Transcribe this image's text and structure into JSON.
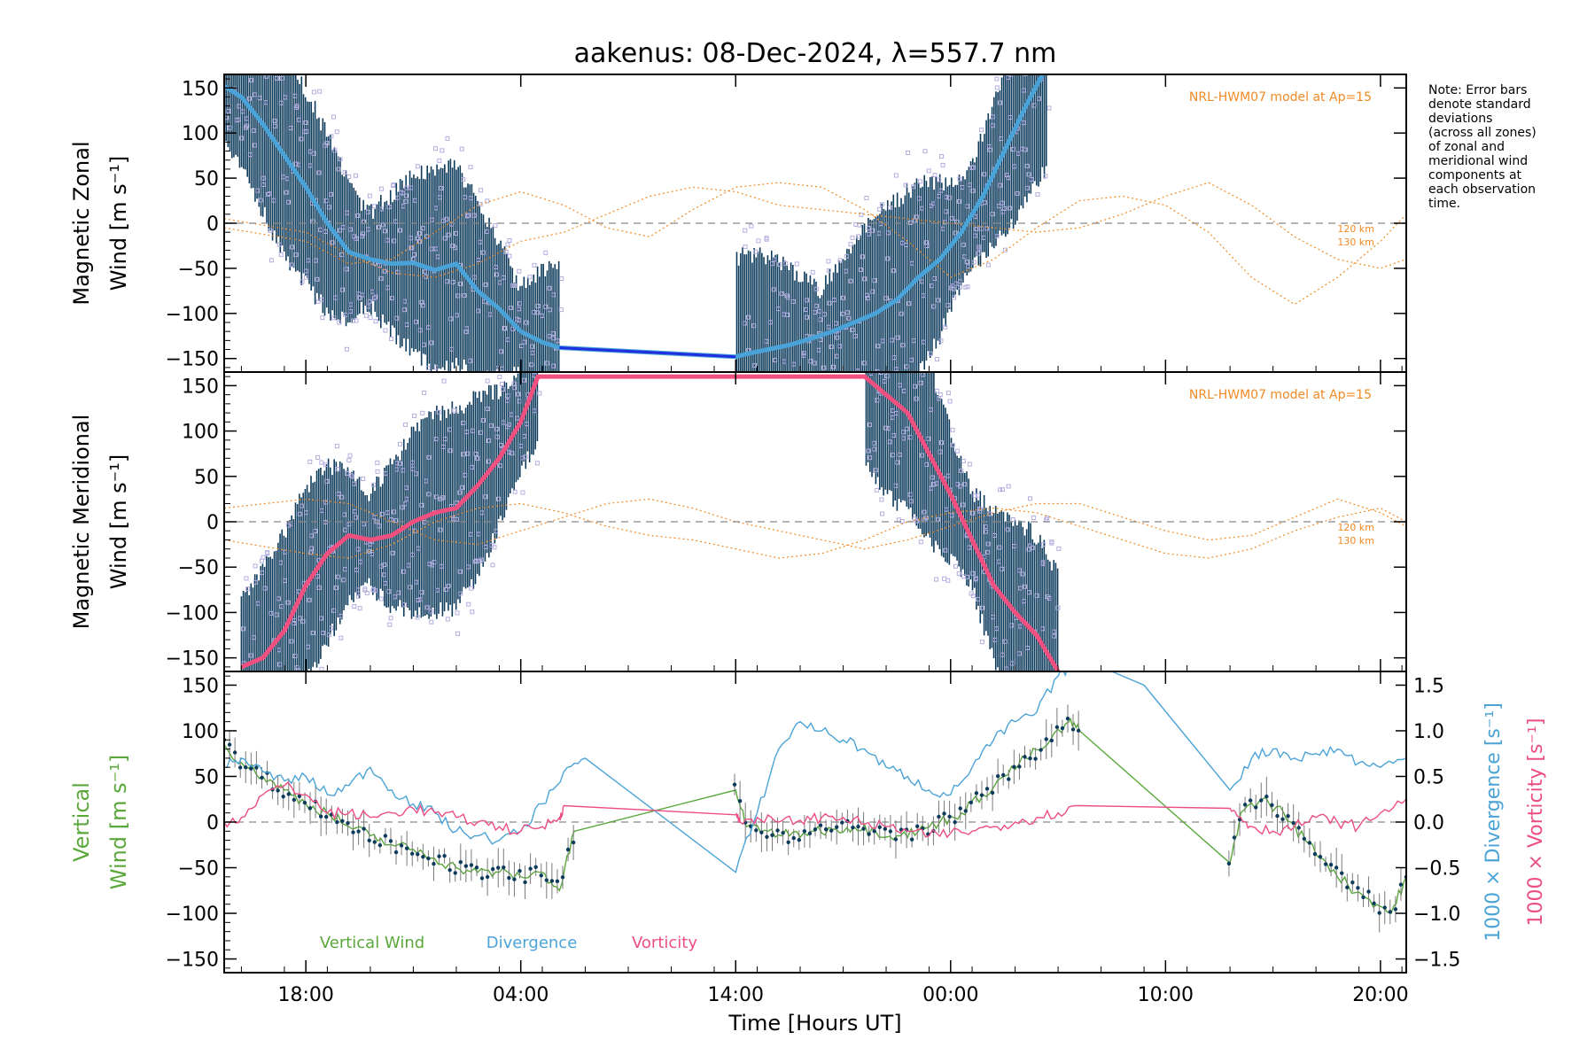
{
  "title": "aakenus: 08-Dec-2024, λ=557.7 nm",
  "note": [
    "Note: Error bars",
    "denote standard",
    "deviations",
    "(across all zones)",
    "of zonal and",
    "meridional wind",
    "components at",
    "each observation",
    "time."
  ],
  "xaxis": {
    "label": "Time [Hours UT]",
    "ticks": [
      "18:00",
      "04:00",
      "14:00",
      "00:00",
      "10:00",
      "20:00"
    ],
    "tick_hours": [
      18,
      28,
      38,
      48,
      58,
      68
    ],
    "range_hours": [
      14.2,
      69.2
    ]
  },
  "colors": {
    "envelope": "#0d3b5c",
    "scatter": "#b3aee0",
    "zonal": "#4aa3d8",
    "zonal_line": "#1f2fe0",
    "meridional": "#f05080",
    "model": "#f08a24",
    "vertical": "#5aa83c",
    "divergence": "#4ba3d6",
    "vorticity": "#ec4d84",
    "zero": "#888888"
  },
  "chart_data": [
    {
      "type": "line",
      "panel": "zonal",
      "ylabel_line1": "Magnetic Zonal",
      "ylabel_line2": "Wind [m s⁻¹]",
      "ylim": [
        -165,
        165
      ],
      "yticks": [
        -150,
        -100,
        -50,
        0,
        50,
        100,
        150
      ],
      "model_label": "NRL-HWM07 model at Ap=15",
      "model_alt_labels": [
        "120 km",
        "130 km"
      ],
      "series": [
        {
          "role": "mean",
          "x": [
            14.2,
            15.0,
            16.0,
            17.0,
            18.0,
            19.0,
            20.0,
            21.0,
            22.0,
            23.0,
            24.0,
            25.0,
            26.0,
            27.0,
            28.0,
            29.0,
            29.8,
            38.0,
            38.5,
            39.5,
            40.5,
            41.5,
            42.5,
            43.5,
            44.5,
            45.5,
            46.5,
            47.5,
            48.5,
            49.5,
            50.5,
            51.5,
            52.5
          ],
          "y": [
            152,
            140,
            110,
            75,
            40,
            0,
            -32,
            -40,
            -45,
            -44,
            -52,
            -45,
            -75,
            -95,
            -120,
            -132,
            -138,
            -148,
            -145,
            -140,
            -135,
            -128,
            -120,
            -110,
            -100,
            -85,
            -60,
            -40,
            -10,
            30,
            80,
            130,
            175
          ]
        }
      ],
      "model": [
        {
          "x": [
            14.2,
            18,
            20,
            22,
            24,
            26,
            28,
            30,
            32,
            34,
            36,
            38,
            40,
            42,
            44,
            46,
            48,
            50,
            52,
            54,
            56,
            58,
            60,
            62,
            64,
            66,
            68,
            69.2
          ],
          "y": [
            5,
            -10,
            -35,
            -55,
            -60,
            -45,
            -20,
            -10,
            10,
            30,
            40,
            35,
            20,
            15,
            10,
            5,
            0,
            -5,
            -10,
            -5,
            10,
            30,
            45,
            20,
            -15,
            -40,
            -50,
            -40
          ]
        },
        {
          "x": [
            14.2,
            18,
            20,
            22,
            24,
            26,
            28,
            30,
            32,
            34,
            36,
            38,
            40,
            42,
            44,
            46,
            48,
            50,
            52,
            54,
            56,
            58,
            60,
            62,
            64,
            66,
            68,
            69.2
          ],
          "y": [
            -5,
            -20,
            -45,
            -40,
            -10,
            20,
            35,
            20,
            -5,
            -15,
            15,
            40,
            45,
            40,
            15,
            -20,
            -60,
            -40,
            -5,
            25,
            30,
            20,
            -10,
            -60,
            -90,
            -60,
            -20,
            10
          ]
        }
      ]
    },
    {
      "type": "line",
      "panel": "meridional",
      "ylabel_line1": "Magnetic Meridional",
      "ylabel_line2": "Wind [m s⁻¹]",
      "ylim": [
        -165,
        165
      ],
      "yticks": [
        -150,
        -100,
        -50,
        0,
        50,
        100,
        150
      ],
      "model_label": "NRL-HWM07 model at Ap=15",
      "model_alt_labels": [
        "120 km",
        "130 km"
      ],
      "series": [
        {
          "role": "mean",
          "x": [
            15.0,
            16.0,
            17.0,
            18.0,
            19.0,
            20.0,
            21.0,
            22.0,
            23.0,
            24.0,
            25.0,
            26.0,
            27.0,
            28.0,
            28.8,
            44.0,
            45.0,
            46.0,
            47.0,
            48.0,
            49.0,
            50.0,
            51.0,
            52.0,
            53.0
          ],
          "y": [
            -160,
            -150,
            -120,
            -70,
            -35,
            -15,
            -20,
            -15,
            0,
            10,
            15,
            40,
            70,
            110,
            160,
            160,
            140,
            120,
            75,
            30,
            -20,
            -70,
            -100,
            -125,
            -165
          ]
        }
      ],
      "model": [
        {
          "x": [
            14.2,
            18,
            20,
            22,
            24,
            26,
            28,
            30,
            32,
            34,
            36,
            38,
            40,
            42,
            44,
            46,
            48,
            50,
            52,
            54,
            56,
            58,
            60,
            62,
            64,
            66,
            68,
            69.2
          ],
          "y": [
            15,
            25,
            20,
            0,
            -20,
            -25,
            -10,
            5,
            20,
            25,
            15,
            0,
            -10,
            -20,
            -30,
            -20,
            -5,
            10,
            20,
            20,
            5,
            -10,
            -20,
            -15,
            5,
            25,
            10,
            -5
          ]
        },
        {
          "x": [
            14.2,
            18,
            20,
            22,
            24,
            26,
            28,
            30,
            32,
            34,
            36,
            38,
            40,
            42,
            44,
            46,
            48,
            50,
            52,
            54,
            56,
            58,
            60,
            62,
            64,
            66,
            68,
            69.2
          ],
          "y": [
            -20,
            -35,
            -40,
            -25,
            0,
            15,
            20,
            10,
            -5,
            -15,
            -20,
            -30,
            -40,
            -35,
            -20,
            0,
            10,
            15,
            10,
            -5,
            -20,
            -35,
            -40,
            -30,
            -10,
            5,
            15,
            0
          ]
        }
      ]
    },
    {
      "type": "line",
      "panel": "vertical",
      "ylabel_line1": "Vertical",
      "ylabel_line2": "Wind [m s⁻¹]",
      "right_label_div": "1000 × Divergence [s⁻¹]",
      "right_label_vort": "1000 × Vorticity [s⁻¹]",
      "ylim": [
        -165,
        165
      ],
      "yticks": [
        -150,
        -100,
        -50,
        0,
        50,
        100,
        150
      ],
      "y2lim": [
        -1.65,
        1.65
      ],
      "y2ticks": [
        -1.5,
        -1.0,
        -0.5,
        0.0,
        0.5,
        1.0,
        1.5
      ],
      "y2tick_labels": [
        "−1.5",
        "−1.0",
        "−0.5",
        "0.0",
        "0.5",
        "1.0",
        "1.5"
      ],
      "legend": [
        "Vertical Wind",
        "Divergence",
        "Vorticity"
      ],
      "series": [
        {
          "name": "Vertical Wind",
          "axis": "left",
          "x": [
            14.2,
            15,
            16,
            17,
            18,
            19,
            20,
            21,
            22,
            23,
            24,
            25,
            26,
            27,
            28,
            29,
            29.8,
            30.5,
            38.0,
            38.5,
            39.5,
            40.5,
            41.5,
            42.5,
            43.5,
            44.5,
            45.5,
            46.5,
            47.5,
            48.5,
            49.5,
            50.5,
            51.5,
            52.5,
            53.5,
            54.0,
            61.0,
            61.5,
            62.5,
            63.5,
            64.5,
            65.5,
            66.5,
            67.5,
            68.5,
            69.2
          ],
          "y": [
            85,
            65,
            50,
            35,
            20,
            10,
            -5,
            -15,
            -25,
            -30,
            -40,
            -50,
            -55,
            -55,
            -60,
            -55,
            -75,
            -10,
            35,
            -5,
            -10,
            -15,
            -10,
            -8,
            -5,
            -10,
            -15,
            -10,
            0,
            10,
            30,
            50,
            70,
            85,
            110,
            100,
            -45,
            10,
            25,
            10,
            -20,
            -45,
            -70,
            -85,
            -100,
            -60
          ]
        },
        {
          "name": "Divergence",
          "axis": "right",
          "x": [
            14.2,
            15,
            16,
            17,
            18,
            19,
            20,
            21,
            22,
            23,
            24,
            25,
            26,
            27,
            28,
            29,
            30,
            31,
            38,
            39,
            40,
            41,
            42,
            43,
            44,
            45,
            46,
            47,
            48,
            49,
            50,
            51,
            52,
            53,
            54,
            55,
            57,
            61,
            62,
            63,
            64,
            65,
            66,
            67,
            68,
            69.2
          ],
          "y": [
            0.6,
            0.7,
            0.55,
            0.45,
            0.5,
            0.3,
            0.4,
            0.6,
            0.35,
            0.2,
            0.1,
            -0.1,
            -0.15,
            -0.2,
            -0.1,
            0.2,
            0.55,
            0.7,
            -0.55,
            0.1,
            0.8,
            1.1,
            1.0,
            0.9,
            0.8,
            0.6,
            0.5,
            0.35,
            0.3,
            0.6,
            0.9,
            1.1,
            1.2,
            1.6,
            1.8,
            1.7,
            1.5,
            0.35,
            0.7,
            0.8,
            0.7,
            0.75,
            0.8,
            0.65,
            0.6,
            0.7
          ]
        },
        {
          "name": "Vorticity",
          "axis": "right",
          "x": [
            14.2,
            15,
            16,
            17,
            18,
            19,
            20,
            21,
            22,
            23,
            24,
            25,
            26,
            27,
            28,
            29,
            29.8,
            30,
            38,
            38.2,
            39,
            40,
            41,
            42,
            43,
            44,
            45,
            46,
            47,
            48,
            49,
            50,
            51,
            52,
            53,
            54,
            61,
            61.5,
            62,
            63,
            64,
            65,
            66,
            67,
            68,
            69.2
          ],
          "y": [
            0.0,
            0.05,
            0.3,
            0.4,
            0.3,
            0.1,
            0.1,
            0.05,
            0.1,
            0.15,
            0.1,
            0.05,
            0.0,
            -0.05,
            -0.1,
            -0.05,
            0.05,
            0.18,
            0.08,
            0.0,
            0.05,
            0.0,
            0.02,
            0.05,
            0.05,
            -0.02,
            -0.05,
            -0.1,
            -0.15,
            -0.12,
            -0.1,
            -0.05,
            0.0,
            0.05,
            0.1,
            0.18,
            0.15,
            0.05,
            -0.05,
            -0.1,
            -0.05,
            0.05,
            0.0,
            -0.05,
            0.1,
            0.25
          ]
        }
      ]
    }
  ]
}
